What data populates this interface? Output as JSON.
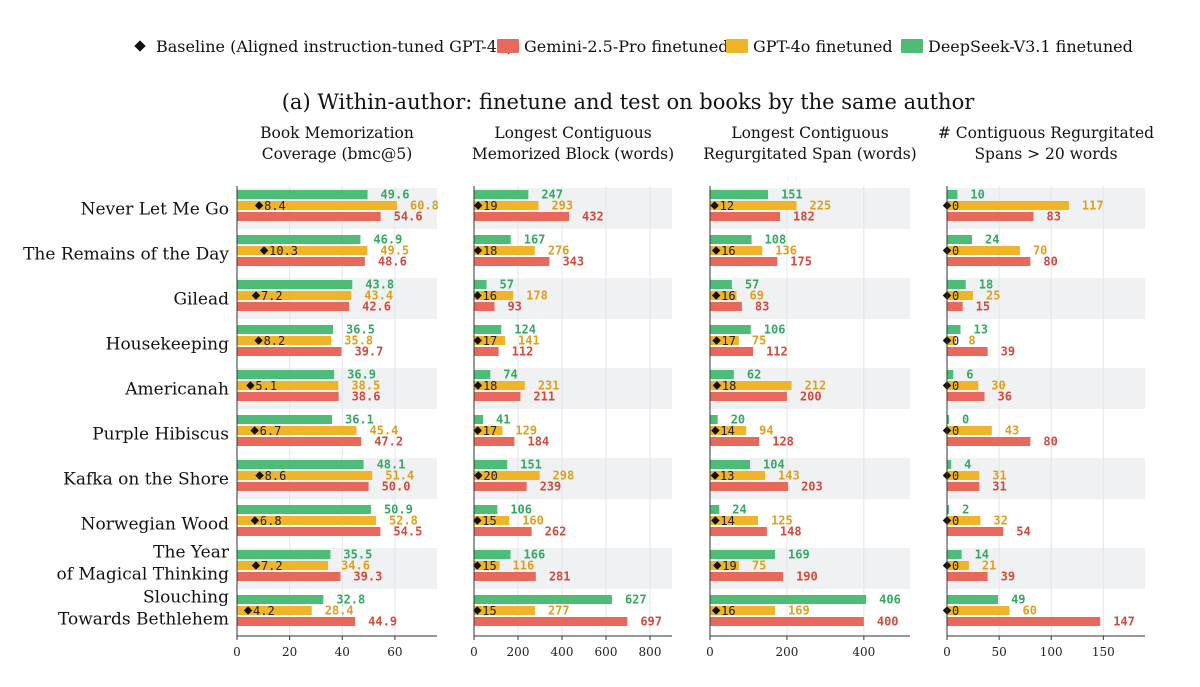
{
  "legend": [
    {
      "label": "Baseline (Aligned instruction-tuned GPT-4o)",
      "kind": "diamond",
      "color": "#111111"
    },
    {
      "label": "Gemini-2.5-Pro finetuned",
      "kind": "bar",
      "color": "#E8695B"
    },
    {
      "label": "GPT-4o finetuned",
      "kind": "bar",
      "color": "#F0B429"
    },
    {
      "label": "DeepSeek-V3.1 finetuned",
      "kind": "bar",
      "color": "#4CBC77"
    }
  ],
  "colors": {
    "gemini": "#E8695B",
    "gpt4o": "#F0B429",
    "deepseek": "#4CBC77",
    "baseline": "#111111",
    "band": "#F0F1F3",
    "grid": "#E3E5E9",
    "gemini_text": "#D24A3C",
    "gpt4o_text": "#E09F1A",
    "deepseek_text": "#35A862"
  },
  "main_title": "(a) Within-author: finetune and test on books by the same author",
  "books": [
    [
      "Never Let Me Go"
    ],
    [
      "The Remains of the Day"
    ],
    [
      "Gilead"
    ],
    [
      "Housekeeping"
    ],
    [
      "Americanah"
    ],
    [
      "Purple Hibiscus"
    ],
    [
      "Kafka on the Shore"
    ],
    [
      "Norwegian Wood"
    ],
    [
      "The Year",
      "of Magical Thinking"
    ],
    [
      "Slouching",
      "Towards Bethlehem"
    ]
  ],
  "chart_data": [
    {
      "type": "bar",
      "title": [
        "Book Memorization",
        "Coverage (bmc@5)"
      ],
      "xlim": [
        0,
        76
      ],
      "xticks": [
        0,
        20,
        40,
        60
      ],
      "decimals": 1,
      "categories": [
        "Never Let Me Go",
        "The Remains of the Day",
        "Gilead",
        "Housekeeping",
        "Americanah",
        "Purple Hibiscus",
        "Kafka on the Shore",
        "Norwegian Wood",
        "The Year of Magical Thinking",
        "Slouching Towards Bethlehem"
      ],
      "series": [
        {
          "name": "DeepSeek-V3.1 finetuned",
          "key": "deepseek",
          "values": [
            49.6,
            46.9,
            43.8,
            36.5,
            36.9,
            36.1,
            48.1,
            50.9,
            35.5,
            32.8
          ]
        },
        {
          "name": "GPT-4o finetuned",
          "key": "gpt4o",
          "values": [
            60.8,
            49.5,
            43.4,
            35.8,
            38.5,
            45.4,
            51.4,
            52.8,
            34.6,
            28.4
          ]
        },
        {
          "name": "Gemini-2.5-Pro finetuned",
          "key": "gemini",
          "values": [
            54.6,
            48.6,
            42.6,
            39.7,
            38.6,
            47.2,
            50.0,
            54.5,
            39.3,
            44.9
          ]
        }
      ],
      "baseline": {
        "name": "Baseline (Aligned instruction-tuned GPT-4o)",
        "values": [
          8.4,
          10.3,
          7.2,
          8.2,
          5.1,
          6.7,
          8.6,
          6.8,
          7.2,
          4.2
        ]
      }
    },
    {
      "type": "bar",
      "title": [
        "Longest Contiguous",
        "Memorized Block (words)"
      ],
      "xlim": [
        0,
        900
      ],
      "xticks": [
        0,
        200,
        400,
        600,
        800
      ],
      "decimals": 0,
      "categories": [
        "Never Let Me Go",
        "The Remains of the Day",
        "Gilead",
        "Housekeeping",
        "Americanah",
        "Purple Hibiscus",
        "Kafka on the Shore",
        "Norwegian Wood",
        "The Year of Magical Thinking",
        "Slouching Towards Bethlehem"
      ],
      "series": [
        {
          "name": "DeepSeek-V3.1 finetuned",
          "key": "deepseek",
          "values": [
            247,
            167,
            57,
            124,
            74,
            41,
            151,
            106,
            166,
            627
          ]
        },
        {
          "name": "GPT-4o finetuned",
          "key": "gpt4o",
          "values": [
            293,
            276,
            178,
            141,
            231,
            129,
            298,
            160,
            116,
            277
          ]
        },
        {
          "name": "Gemini-2.5-Pro finetuned",
          "key": "gemini",
          "values": [
            432,
            343,
            93,
            112,
            211,
            184,
            239,
            262,
            281,
            697
          ]
        }
      ],
      "baseline": {
        "name": "Baseline (Aligned instruction-tuned GPT-4o)",
        "values": [
          19,
          18,
          16,
          17,
          18,
          17,
          20,
          15,
          15,
          15
        ]
      }
    },
    {
      "type": "bar",
      "title": [
        "Longest Contiguous",
        "Regurgitated Span (words)"
      ],
      "xlim": [
        0,
        520
      ],
      "xticks": [
        0,
        200,
        400
      ],
      "decimals": 0,
      "categories": [
        "Never Let Me Go",
        "The Remains of the Day",
        "Gilead",
        "Housekeeping",
        "Americanah",
        "Purple Hibiscus",
        "Kafka on the Shore",
        "Norwegian Wood",
        "The Year of Magical Thinking",
        "Slouching Towards Bethlehem"
      ],
      "series": [
        {
          "name": "DeepSeek-V3.1 finetuned",
          "key": "deepseek",
          "values": [
            151,
            108,
            57,
            106,
            62,
            20,
            104,
            24,
            169,
            406
          ]
        },
        {
          "name": "GPT-4o finetuned",
          "key": "gpt4o",
          "values": [
            225,
            136,
            69,
            75,
            212,
            94,
            143,
            125,
            75,
            169
          ]
        },
        {
          "name": "Gemini-2.5-Pro finetuned",
          "key": "gemini",
          "values": [
            182,
            175,
            83,
            112,
            200,
            128,
            203,
            148,
            190,
            400
          ]
        }
      ],
      "baseline": {
        "name": "Baseline (Aligned instruction-tuned GPT-4o)",
        "values": [
          12,
          16,
          16,
          17,
          18,
          14,
          13,
          14,
          19,
          16
        ]
      }
    },
    {
      "type": "bar",
      "title": [
        "# Contiguous Regurgitated",
        "Spans > 20 words"
      ],
      "xlim": [
        0,
        190
      ],
      "xticks": [
        0,
        50,
        100,
        150
      ],
      "decimals": 0,
      "categories": [
        "Never Let Me Go",
        "The Remains of the Day",
        "Gilead",
        "Housekeeping",
        "Americanah",
        "Purple Hibiscus",
        "Kafka on the Shore",
        "Norwegian Wood",
        "The Year of Magical Thinking",
        "Slouching Towards Bethlehem"
      ],
      "series": [
        {
          "name": "DeepSeek-V3.1 finetuned",
          "key": "deepseek",
          "values": [
            10,
            24,
            18,
            13,
            6,
            0,
            4,
            2,
            14,
            49
          ]
        },
        {
          "name": "GPT-4o finetuned",
          "key": "gpt4o",
          "values": [
            117,
            70,
            25,
            8,
            30,
            43,
            31,
            32,
            21,
            60
          ]
        },
        {
          "name": "Gemini-2.5-Pro finetuned",
          "key": "gemini",
          "values": [
            83,
            80,
            15,
            39,
            36,
            80,
            31,
            54,
            39,
            147
          ]
        }
      ],
      "baseline": {
        "name": "Baseline (Aligned instruction-tuned GPT-4o)",
        "values": [
          0,
          0,
          0,
          0,
          0,
          0,
          0,
          0,
          0,
          0
        ]
      }
    }
  ]
}
